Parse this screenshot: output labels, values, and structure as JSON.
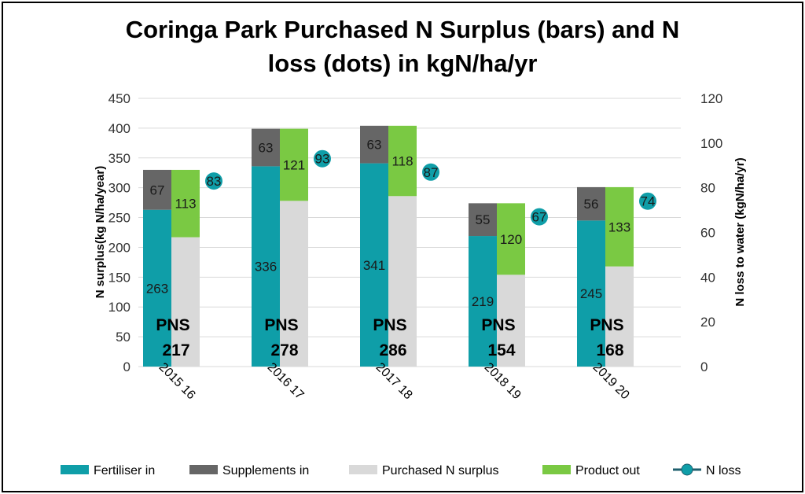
{
  "chart_data": {
    "type": "bar",
    "stacked": true,
    "title_lines": [
      "Coringa Park Purchased N Surplus (bars) and N",
      "loss (dots) in kgN/ha/yr"
    ],
    "ylabel": "N surplus(kg N/ha/year)",
    "y2label": "N loss to water (kgN/ha/yr)",
    "ylim": [
      0,
      450
    ],
    "y2lim": [
      0,
      120
    ],
    "yticks": [
      0,
      50,
      100,
      150,
      200,
      250,
      300,
      350,
      400,
      450
    ],
    "y2ticks": [
      0,
      20,
      40,
      60,
      80,
      100,
      120
    ],
    "categories": [
      "2015 16",
      "2016 17",
      "2017 18",
      "2018 19",
      "2019 20"
    ],
    "pns_label": "PNS",
    "series": [
      {
        "name": "Fertiliser in",
        "color": "#0f9ea8",
        "values": [
          263,
          336,
          341,
          219,
          245
        ]
      },
      {
        "name": "Supplements in",
        "color": "#666666",
        "values": [
          67,
          63,
          63,
          55,
          56
        ]
      },
      {
        "name": "Purchased N surplus",
        "color": "#d9d9d9",
        "values": [
          217,
          278,
          286,
          154,
          168
        ]
      },
      {
        "name": "Product out",
        "color": "#7ac943",
        "values": [
          113,
          121,
          118,
          120,
          133
        ]
      },
      {
        "name": "N loss",
        "color": "#0f9ea8",
        "axis": "secondary",
        "values": [
          83,
          93,
          87,
          67,
          74
        ]
      }
    ],
    "legend_position": "bottom",
    "grid": true
  }
}
